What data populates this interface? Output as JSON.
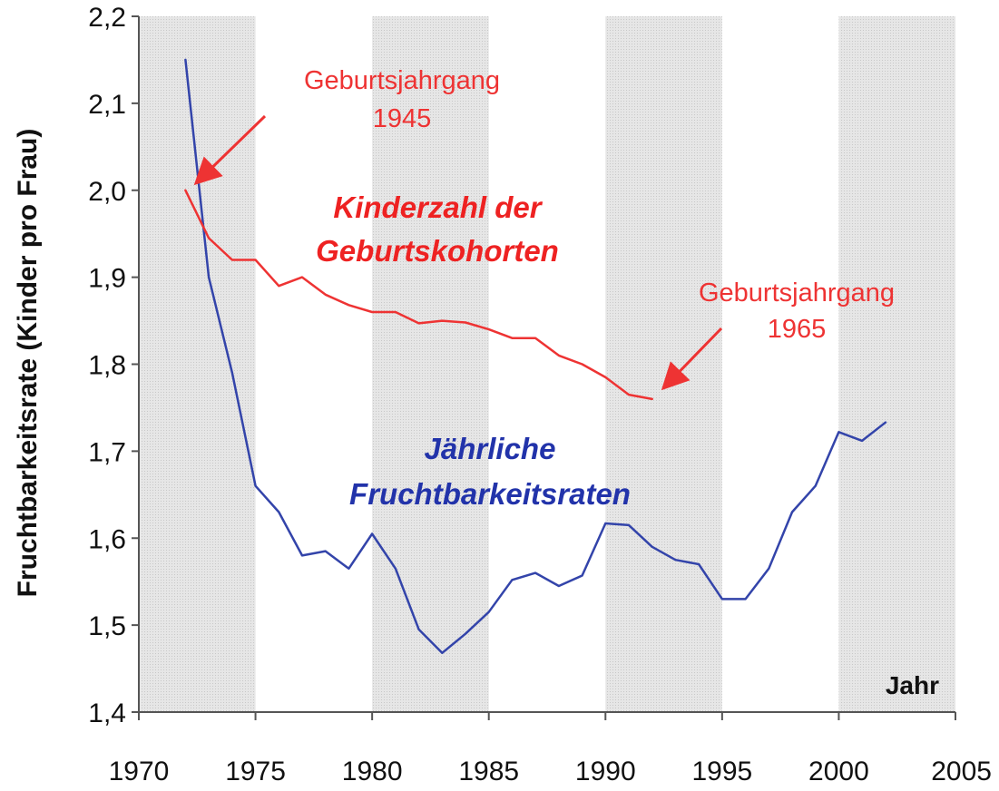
{
  "chart_data": {
    "type": "line",
    "xlabel": "Jahr",
    "ylabel": "Fruchtbarkeitsrate (Kinder pro Frau)",
    "xlim": [
      1970,
      2005
    ],
    "ylim": [
      1.4,
      2.2
    ],
    "x_ticks": [
      1970,
      1975,
      1980,
      1985,
      1990,
      1995,
      2000,
      2005
    ],
    "x_tick_labels": [
      "1970",
      "1975",
      "1980",
      "1985",
      "1990",
      "1995",
      "2000",
      "2005"
    ],
    "y_ticks": [
      1.4,
      1.5,
      1.6,
      1.7,
      1.8,
      1.9,
      2.0,
      2.1,
      2.2
    ],
    "y_tick_labels": [
      "1,4",
      "1,5",
      "1,6",
      "1,7",
      "1,8",
      "1,9",
      "2,0",
      "2,1",
      "2,2"
    ],
    "grid": false,
    "background_bands": "alternating 5-year shaded columns",
    "series": [
      {
        "name": "Jährliche Fruchtbarkeitsraten",
        "color": "#3344aa",
        "x": [
          1972,
          1973,
          1974,
          1975,
          1976,
          1977,
          1978,
          1979,
          1980,
          1981,
          1982,
          1983,
          1984,
          1985,
          1986,
          1987,
          1988,
          1989,
          1990,
          1991,
          1992,
          1993,
          1994,
          1995,
          1996,
          1997,
          1998,
          1999,
          2000,
          2001,
          2002
        ],
        "values": [
          2.15,
          1.9,
          1.79,
          1.66,
          1.63,
          1.58,
          1.585,
          1.565,
          1.605,
          1.565,
          1.495,
          1.468,
          1.49,
          1.515,
          1.552,
          1.56,
          1.545,
          1.557,
          1.617,
          1.615,
          1.59,
          1.575,
          1.57,
          1.53,
          1.53,
          1.565,
          1.63,
          1.66,
          1.722,
          1.712,
          1.733
        ]
      },
      {
        "name": "Kinderzahl der Geburtskohorten",
        "color": "#ee3333",
        "x": [
          1972,
          1973,
          1974,
          1975,
          1976,
          1977,
          1978,
          1979,
          1980,
          1981,
          1982,
          1983,
          1984,
          1985,
          1986,
          1987,
          1988,
          1989,
          1990,
          1991,
          1992
        ],
        "values": [
          2.0,
          1.945,
          1.92,
          1.92,
          1.89,
          1.9,
          1.88,
          1.868,
          1.86,
          1.86,
          1.847,
          1.85,
          1.848,
          1.84,
          1.83,
          1.83,
          1.81,
          1.8,
          1.785,
          1.765,
          1.76
        ]
      }
    ],
    "series_labels": {
      "blue_line1": "Jährliche",
      "blue_line2": "Fruchtbarkeitsraten",
      "red_line1": "Kinderzahl der",
      "red_line2": "Geburtskohorten"
    },
    "annotations": [
      {
        "line1": "Geburtsjahrgang",
        "line2": "1945",
        "arrow_to_year": 1972,
        "arrow_to_value": 2.0
      },
      {
        "line1": "Geburtsjahrgang",
        "line2": "1965",
        "arrow_to_year": 1992,
        "arrow_to_value": 1.76
      }
    ],
    "colors": {
      "band_shade": "#dcdcdc",
      "axis": "#555555",
      "text": "#111111",
      "annotation": "#ee3333",
      "blue_text": "#2233aa",
      "red_text": "#ee2222"
    }
  }
}
